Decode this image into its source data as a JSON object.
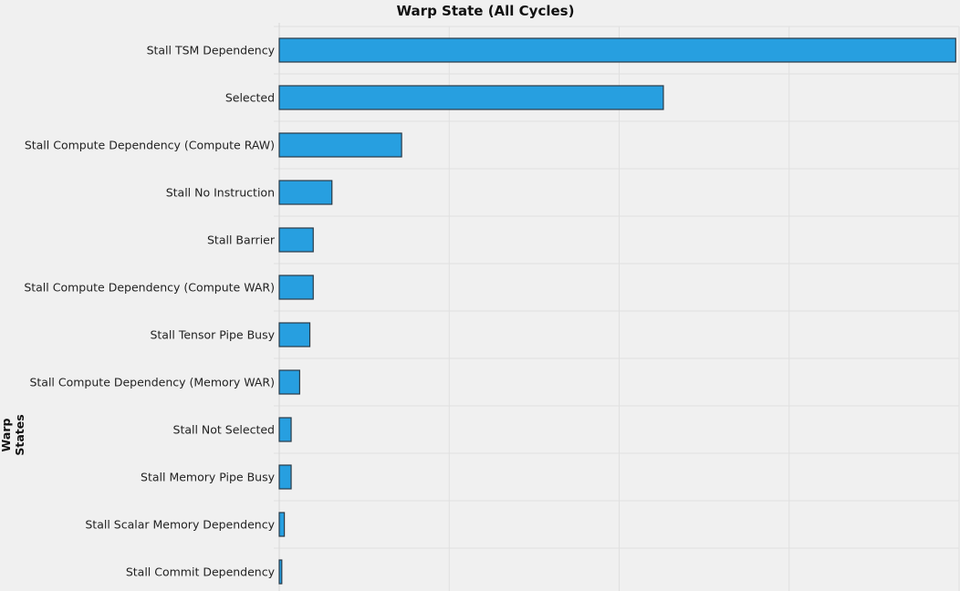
{
  "chart_data": {
    "type": "bar",
    "orientation": "horizontal",
    "title": "Warp State (All Cycles)",
    "xlabel": "",
    "ylabel": "Warp States",
    "xlim": [
      0,
      4
    ],
    "grid": true,
    "categories": [
      "Stall TSM Dependency",
      "Selected",
      "Stall Compute Dependency (Compute RAW)",
      "Stall No Instruction",
      "Stall Barrier",
      "Stall Compute Dependency (Compute WAR)",
      "Stall Tensor Pipe Busy",
      "Stall Compute Dependency (Memory WAR)",
      "Stall Not Selected",
      "Stall Memory Pipe Busy",
      "Stall Scalar Memory Dependency",
      "Stall Commit Dependency"
    ],
    "values": [
      3.98,
      2.26,
      0.72,
      0.31,
      0.2,
      0.2,
      0.18,
      0.12,
      0.07,
      0.07,
      0.03,
      0.015
    ],
    "colors": {
      "bar": "#279fe0",
      "bar_border": "#2b3a46",
      "grid": "#e0e0e0",
      "background": "#f0f0f0"
    }
  }
}
